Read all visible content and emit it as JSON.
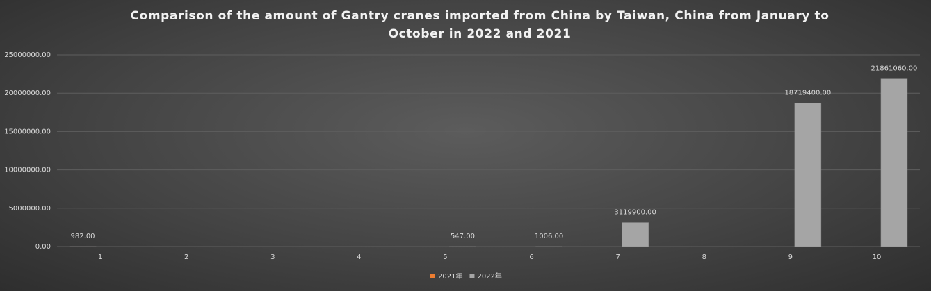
{
  "chart_data": {
    "type": "bar",
    "title": "Comparison of the amount of Gantry cranes imported from China by Taiwan, China from January to October in 2022 and 2021",
    "categories": [
      "1",
      "2",
      "3",
      "4",
      "5",
      "6",
      "7",
      "8",
      "9",
      "10"
    ],
    "series": [
      {
        "name": "2021年",
        "color": "#ed7d31",
        "values": [
          982,
          null,
          null,
          null,
          null,
          null,
          null,
          null,
          null,
          null
        ],
        "value_labels": [
          "982.00",
          null,
          null,
          null,
          null,
          null,
          null,
          null,
          null,
          null
        ]
      },
      {
        "name": "2022年",
        "color": "#a5a5a5",
        "values": [
          null,
          null,
          null,
          null,
          547,
          1006,
          3119900,
          null,
          18719400,
          21861060
        ],
        "value_labels": [
          null,
          null,
          null,
          null,
          "547.00",
          "1006.00",
          "3119900.00",
          null,
          "18719400.00",
          "21861060.00"
        ]
      }
    ],
    "ylim": [
      0,
      25000000
    ],
    "yticks": [
      {
        "value": 0,
        "label": "0.00"
      },
      {
        "value": 5000000,
        "label": "5000000.00"
      },
      {
        "value": 10000000,
        "label": "10000000.00"
      },
      {
        "value": 15000000,
        "label": "15000000.00"
      },
      {
        "value": 20000000,
        "label": "20000000.00"
      },
      {
        "value": 25000000,
        "label": "25000000.00"
      }
    ],
    "grid": true,
    "legend": "bottom"
  }
}
